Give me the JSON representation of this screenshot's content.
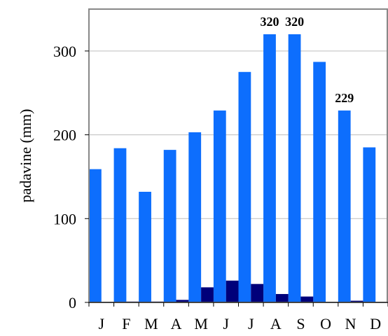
{
  "chart_data": {
    "type": "bar",
    "categories": [
      "J",
      "F",
      "M",
      "A",
      "M",
      "J",
      "J",
      "A",
      "S",
      "O",
      "N",
      "D"
    ],
    "series": [
      {
        "values": [
          159,
          184,
          132,
          182,
          203,
          229,
          275,
          320,
          320,
          287,
          229,
          185
        ],
        "color": "#0d6efd"
      },
      {
        "values": [
          0,
          1,
          1,
          3,
          18,
          26,
          22,
          10,
          7,
          0,
          2,
          0
        ],
        "color": "#00007a"
      }
    ],
    "data_labels": [
      {
        "category_index": 7,
        "text": "320"
      },
      {
        "category_index": 8,
        "text": "320"
      },
      {
        "category_index": 10,
        "text": "229"
      }
    ],
    "ylabel": "padavine (mm)",
    "xlabel": "",
    "ylim": [
      0,
      350
    ],
    "yticks": [
      "0",
      "100",
      "200",
      "300"
    ],
    "grid": true,
    "legend": "none"
  }
}
